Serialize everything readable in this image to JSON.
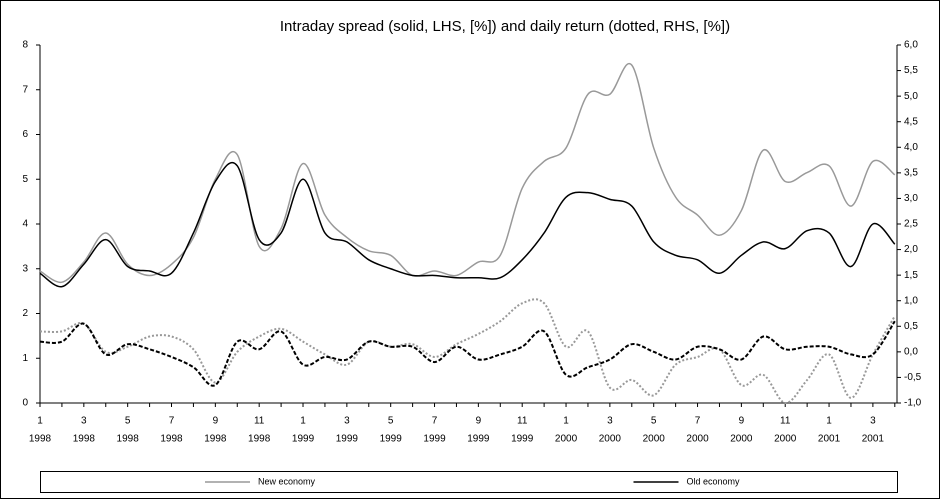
{
  "chart_data": {
    "type": "line",
    "title": "Intraday spread (solid, LHS, [%]) and daily return (dotted, RHS, [%])",
    "categories": [
      "1",
      null,
      "3",
      null,
      "5",
      null,
      "7",
      null,
      "9",
      null,
      "11",
      null,
      "1",
      null,
      "3",
      null,
      "5",
      null,
      "7",
      null,
      "9",
      null,
      "11",
      null,
      "1",
      null,
      "3",
      null,
      "5",
      null,
      "7",
      null,
      "9",
      null,
      "11",
      null,
      "1",
      null,
      "3",
      null
    ],
    "category_years": [
      "1998",
      null,
      "1998",
      null,
      "1998",
      null,
      "1998",
      null,
      "1998",
      null,
      "1998",
      null,
      "1999",
      null,
      "1999",
      null,
      "1999",
      null,
      "1999",
      null,
      "1999",
      null,
      "1999",
      null,
      "2000",
      null,
      "2000",
      null,
      "2000",
      null,
      "2000",
      null,
      "2000",
      null,
      "2000",
      null,
      "2001",
      null,
      "2001",
      null
    ],
    "ylim": [
      0,
      8
    ],
    "yticks": [
      0,
      1,
      2,
      3,
      4,
      5,
      6,
      7,
      8
    ],
    "y2lim": [
      -1,
      6
    ],
    "y2ticks": [
      {
        "value": -1,
        "label": "-1,0"
      },
      {
        "value": -0.5,
        "label": "-0,5"
      },
      {
        "value": 0,
        "label": "0,0"
      },
      {
        "value": 0.5,
        "label": "0,5"
      },
      {
        "value": 1,
        "label": "1,0"
      },
      {
        "value": 1.5,
        "label": "1,5"
      },
      {
        "value": 2,
        "label": "2,0"
      },
      {
        "value": 2.5,
        "label": "2,5"
      },
      {
        "value": 3,
        "label": "3,0"
      },
      {
        "value": 3.5,
        "label": "3,5"
      },
      {
        "value": 4,
        "label": "4,0"
      },
      {
        "value": 4.5,
        "label": "4,5"
      },
      {
        "value": 5,
        "label": "5,0"
      },
      {
        "value": 5.5,
        "label": "5,5"
      },
      {
        "value": 6,
        "label": "6,0"
      }
    ],
    "grid": false,
    "legend": "bottom",
    "series": [
      {
        "name": "New economy",
        "color": "#999999",
        "style": "solid",
        "values": [
          2.95,
          2.7,
          3.15,
          3.8,
          3.1,
          2.85,
          3.1,
          3.7,
          5.0,
          5.55,
          3.5,
          3.9,
          5.35,
          4.2,
          3.7,
          3.4,
          3.3,
          2.85,
          2.95,
          2.85,
          3.15,
          3.3,
          4.8,
          5.4,
          5.7,
          6.9,
          6.9,
          7.55,
          5.7,
          4.6,
          4.2,
          3.75,
          4.3,
          5.65,
          4.95,
          5.15,
          5.3,
          4.4,
          5.4,
          5.1
        ]
      },
      {
        "name": "Old economy",
        "color": "#000000",
        "style": "solid",
        "values": [
          2.9,
          2.6,
          3.1,
          3.65,
          3.05,
          2.95,
          2.9,
          3.8,
          4.95,
          5.3,
          3.65,
          3.8,
          5.0,
          3.8,
          3.6,
          3.2,
          3.0,
          2.85,
          2.85,
          2.8,
          2.8,
          2.8,
          3.2,
          3.8,
          4.6,
          4.7,
          4.55,
          4.4,
          3.6,
          3.3,
          3.2,
          2.9,
          3.3,
          3.6,
          3.45,
          3.85,
          3.8,
          3.05,
          4.0,
          3.55
        ]
      },
      {
        "color": "#999999",
        "style": "dotted",
        "axis": "y2",
        "values": [
          0.4,
          0.4,
          0.55,
          0.0,
          0.1,
          0.3,
          0.3,
          0.05,
          -0.6,
          0.0,
          0.3,
          0.45,
          0.2,
          -0.05,
          -0.25,
          0.2,
          0.1,
          0.15,
          -0.1,
          0.15,
          0.35,
          0.6,
          0.95,
          0.95,
          0.1,
          0.4,
          -0.7,
          -0.55,
          -0.85,
          -0.25,
          -0.1,
          0.05,
          -0.65,
          -0.45,
          -1.0,
          -0.55,
          -0.05,
          -0.9,
          -0.05,
          0.7
        ]
      },
      {
        "color": "#000000",
        "style": "dashed",
        "axis": "y2",
        "values": [
          0.2,
          0.2,
          0.55,
          -0.05,
          0.15,
          0.05,
          -0.1,
          -0.3,
          -0.65,
          0.2,
          0.05,
          0.4,
          -0.25,
          -0.1,
          -0.15,
          0.2,
          0.1,
          0.1,
          -0.2,
          0.1,
          -0.15,
          -0.05,
          0.1,
          0.4,
          -0.45,
          -0.3,
          -0.15,
          0.15,
          0.0,
          -0.15,
          0.1,
          0.05,
          -0.15,
          0.3,
          0.05,
          0.1,
          0.1,
          -0.05,
          -0.05,
          0.6
        ]
      }
    ]
  }
}
